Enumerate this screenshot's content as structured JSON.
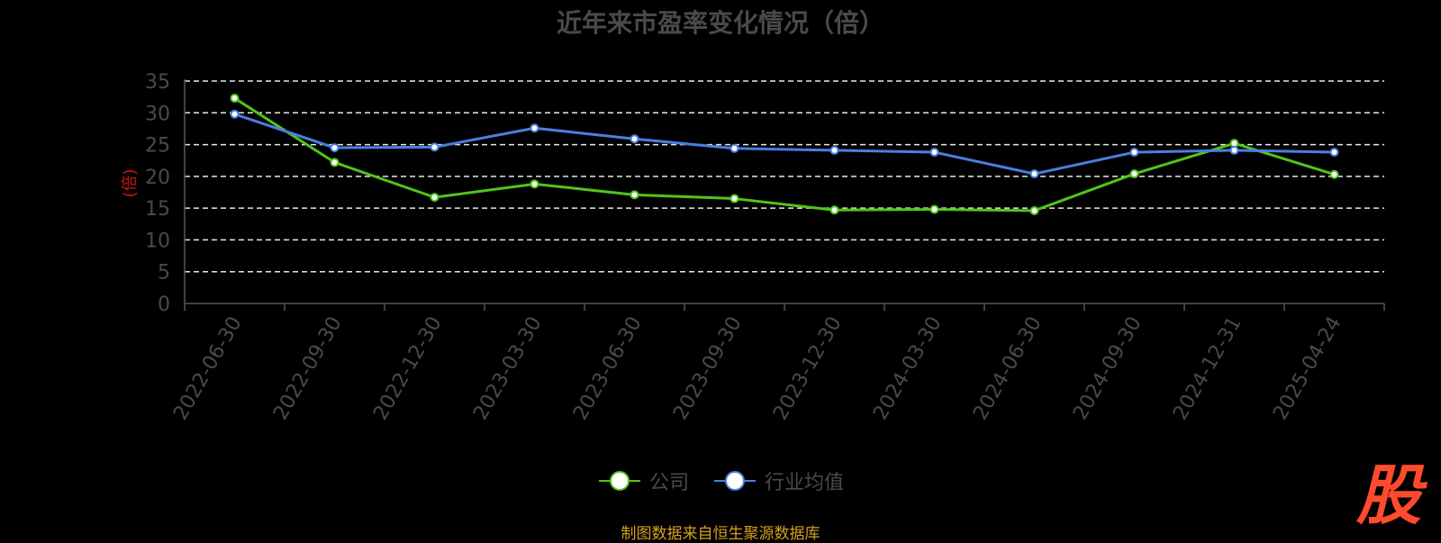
{
  "chart_data": {
    "type": "line",
    "title": "近年来市盈率变化情况（倍）",
    "ylabel": "(倍)",
    "categories": [
      "2022-06-30",
      "2022-09-30",
      "2022-12-30",
      "2023-03-30",
      "2023-06-30",
      "2023-09-30",
      "2023-12-30",
      "2024-03-30",
      "2024-06-30",
      "2024-09-30",
      "2024-12-31",
      "2025-04-24"
    ],
    "ylim": [
      0,
      35
    ],
    "yticks": [
      "0",
      "5",
      "10",
      "15",
      "20",
      "25",
      "30",
      "35"
    ],
    "grid": true,
    "legend_position": "bottom",
    "series": [
      {
        "name": "公司",
        "color": "#52c41a",
        "values": [
          32.3,
          22.2,
          16.7,
          18.8,
          17.1,
          16.5,
          14.7,
          14.8,
          14.6,
          20.4,
          25.2,
          20.3
        ]
      },
      {
        "name": "行业均值",
        "color": "#4a7fe0",
        "values": [
          29.8,
          24.5,
          24.6,
          27.6,
          25.9,
          24.4,
          24.1,
          23.8,
          20.4,
          23.8,
          24.1,
          23.8
        ]
      }
    ]
  },
  "footer": {
    "source": "制图数据来自恒生聚源数据库"
  },
  "logo": {
    "text": "股"
  }
}
